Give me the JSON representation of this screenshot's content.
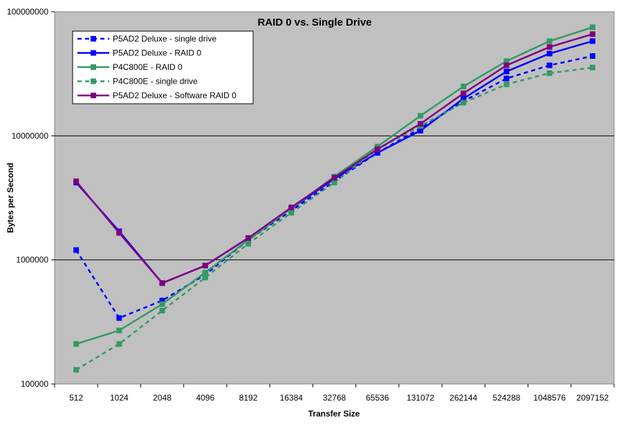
{
  "chart_data": {
    "type": "line",
    "title": "RAID 0 vs. Single Drive",
    "xlabel": "Transfer Size",
    "ylabel": "Bytes per Second",
    "yscale": "log",
    "ylim": [
      100000,
      100000000
    ],
    "y_ticks": [
      "100000",
      "1000000",
      "10000000",
      "100000000"
    ],
    "categories": [
      "512",
      "1024",
      "2048",
      "4096",
      "8192",
      "16384",
      "32768",
      "65536",
      "131072",
      "262144",
      "524288",
      "1048576",
      "2097152"
    ],
    "grid": "horizontal major gridlines",
    "legend_position": "top-left",
    "plot_background": "#c0c0c0",
    "series": [
      {
        "name": "P5AD2 Deluxe - single drive",
        "color": "#0000ff",
        "style": "dashed",
        "values": [
          1200000,
          340000,
          470000,
          760000,
          1450000,
          2500000,
          4300000,
          7300000,
          11500000,
          19000000,
          29000000,
          37000000,
          44000000
        ]
      },
      {
        "name": "P5AD2 Deluxe - RAID 0",
        "color": "#0000ff",
        "style": "solid",
        "values": [
          4200000,
          1700000,
          650000,
          900000,
          1500000,
          2600000,
          4500000,
          7300000,
          11000000,
          20000000,
          33000000,
          46000000,
          58000000
        ]
      },
      {
        "name": "P4C800E - RAID 0",
        "color": "#339966",
        "style": "solid",
        "values": [
          210000,
          270000,
          440000,
          790000,
          1450000,
          2600000,
          4700000,
          8200000,
          14500000,
          25000000,
          40000000,
          58000000,
          75000000
        ]
      },
      {
        "name": "P4C800E - single drive",
        "color": "#339966",
        "style": "dashed",
        "values": [
          130000,
          210000,
          390000,
          720000,
          1350000,
          2400000,
          4200000,
          7800000,
          12000000,
          18500000,
          26000000,
          32000000,
          35500000
        ]
      },
      {
        "name": "P5AD2 Deluxe - Software RAID 0",
        "color": "#800080",
        "style": "solid",
        "values": [
          4300000,
          1650000,
          650000,
          900000,
          1500000,
          2650000,
          4600000,
          7800000,
          12500000,
          22000000,
          37000000,
          52000000,
          66000000
        ]
      }
    ]
  }
}
